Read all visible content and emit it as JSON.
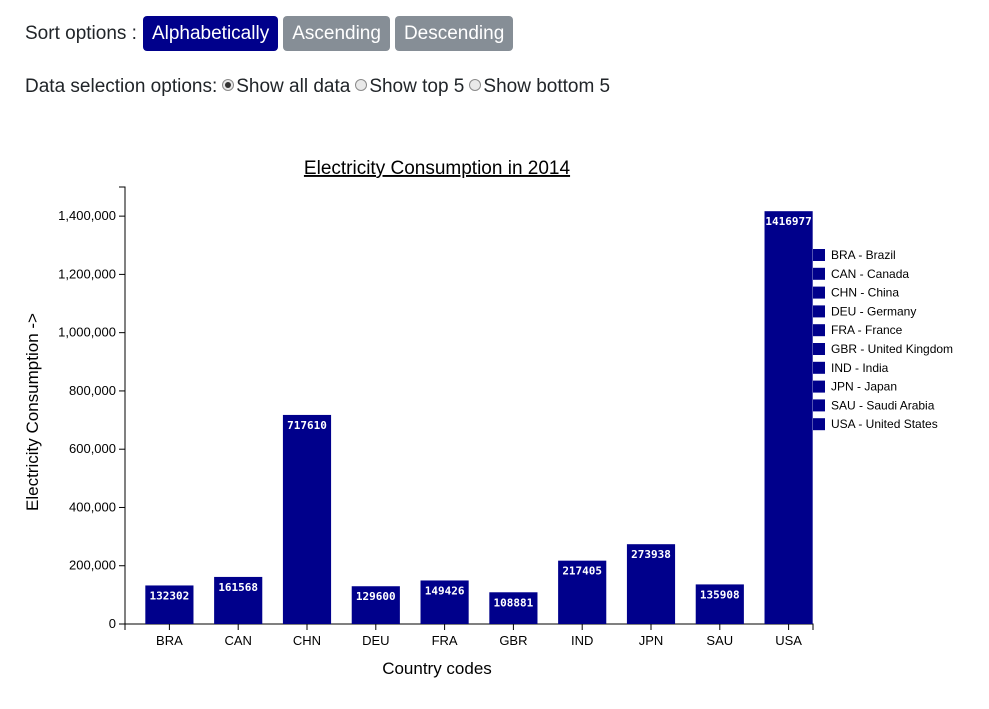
{
  "controls": {
    "sort_label": "Sort options :",
    "sort_buttons": [
      {
        "label": "Alphabetically",
        "active": true
      },
      {
        "label": "Ascending",
        "active": false
      },
      {
        "label": "Descending",
        "active": false
      }
    ],
    "selection_label": "Data selection options:",
    "selection_options": [
      {
        "label": "Show all data",
        "checked": true
      },
      {
        "label": "Show top 5",
        "checked": false
      },
      {
        "label": "Show bottom 5",
        "checked": false
      }
    ]
  },
  "colors": {
    "bar": "#00008b",
    "active_button": "#00008b",
    "inactive_button": "#868e96"
  },
  "chart_data": {
    "type": "bar",
    "title": "Electricity Consumption in 2014",
    "xlabel": "Country codes",
    "ylabel": "Electricity Consumption ->",
    "ylim": [
      0,
      1500000
    ],
    "yticks": [
      "0",
      "200,000",
      "400,000",
      "600,000",
      "800,000",
      "1,000,000",
      "1,200,000",
      "1,400,000"
    ],
    "categories": [
      "BRA",
      "CAN",
      "CHN",
      "DEU",
      "FRA",
      "GBR",
      "IND",
      "JPN",
      "SAU",
      "USA"
    ],
    "values": [
      132302,
      161568,
      717610,
      129600,
      149426,
      108881,
      217405,
      273938,
      135908,
      1416977
    ],
    "legend": [
      "BRA - Brazil",
      "CAN - Canada",
      "CHN - China",
      "DEU - Germany",
      "FRA - France",
      "GBR - United Kingdom",
      "IND - India",
      "JPN - Japan",
      "SAU - Saudi Arabia",
      "USA - United States"
    ],
    "legend_position": "right",
    "grid": false
  }
}
